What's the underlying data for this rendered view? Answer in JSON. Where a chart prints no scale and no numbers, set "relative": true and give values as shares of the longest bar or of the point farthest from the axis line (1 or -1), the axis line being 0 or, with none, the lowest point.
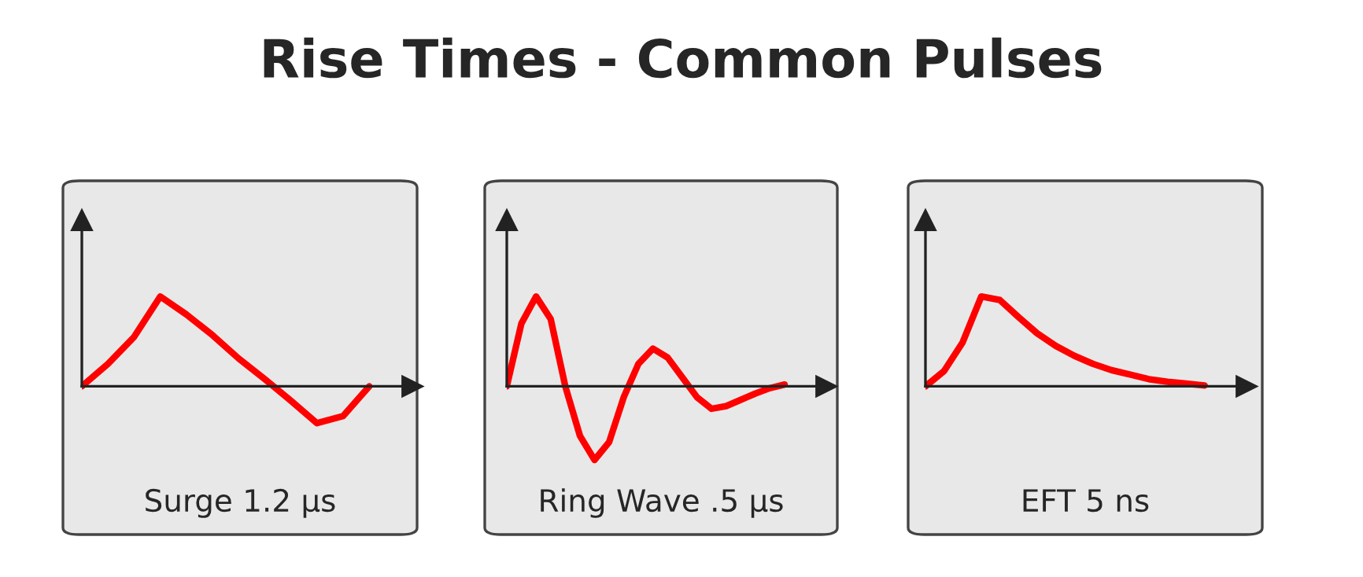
{
  "chart_data": [
    {
      "type": "line",
      "title": "Rise Times - Common Pulses",
      "xlabel": "Surge 1.2 µs",
      "relative": true,
      "categories": [
        null,
        null,
        null,
        null,
        null,
        null,
        null,
        null,
        null,
        null,
        null,
        null
      ],
      "series": [
        {
          "color": "#ff0000",
          "values": [
            0,
            0.25,
            0.55,
            1.0,
            0.8,
            0.57,
            0.31,
            0.08,
            -0.16,
            -0.41,
            -0.33,
            0
          ]
        }
      ]
    },
    {
      "type": "line",
      "xlabel": "Ring Wave .5 µs",
      "relative": true,
      "categories": [
        null,
        null,
        null,
        null,
        null,
        null,
        null,
        null,
        null,
        null,
        null,
        null,
        null,
        null,
        null,
        null,
        null,
        null,
        null,
        null
      ],
      "series": [
        {
          "color": "#ff0000",
          "values": [
            0,
            0.7,
            1.0,
            0.75,
            0,
            -0.55,
            -0.82,
            -0.62,
            -0.12,
            0.25,
            0.42,
            0.32,
            0.1,
            -0.12,
            -0.25,
            -0.22,
            -0.15,
            -0.08,
            -0.02,
            0.02
          ]
        }
      ]
    },
    {
      "type": "line",
      "xlabel": "EFT 5 ns",
      "relative": true,
      "categories": [
        null,
        null,
        null,
        null,
        null,
        null,
        null,
        null,
        null,
        null,
        null,
        null,
        null,
        null,
        null,
        null
      ],
      "series": [
        {
          "color": "#ff0000",
          "values": [
            0,
            0.17,
            0.49,
            1.0,
            0.96,
            0.77,
            0.59,
            0.45,
            0.34,
            0.25,
            0.18,
            0.13,
            0.08,
            0.05,
            0.03,
            0.01
          ]
        }
      ]
    }
  ]
}
